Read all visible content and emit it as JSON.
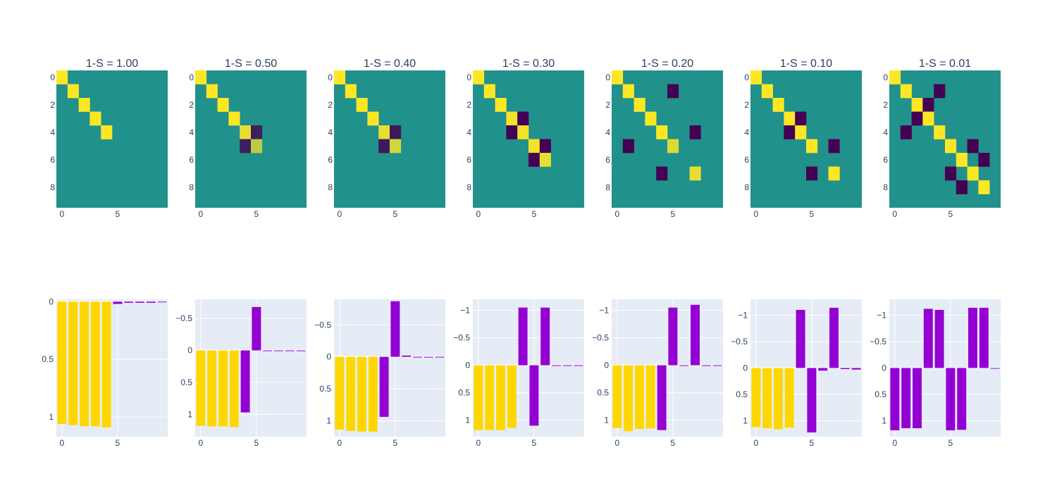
{
  "figure": {
    "colors": {
      "positive_bar": "#FFD700",
      "negative_bar": "#9400D3",
      "plot_bg": "#E5ECF6",
      "heatmap_mid": "#21918c",
      "heatmap_high": "#fde725",
      "heatmap_low": "#440154",
      "grid": "#ffffff",
      "text": "#2a3f5f"
    },
    "colorscale": "viridis"
  },
  "chart_data": [
    {
      "type": "heatmap",
      "title": "1-S = 1.00",
      "x_ticks": [
        "0",
        "5"
      ],
      "y_ticks": [
        "0",
        "2",
        "4",
        "6",
        "8"
      ],
      "cells": [
        [
          0,
          0,
          1
        ],
        [
          1,
          1,
          1
        ],
        [
          2,
          2,
          1
        ],
        [
          3,
          3,
          1
        ],
        [
          4,
          4,
          1
        ]
      ]
    },
    {
      "type": "heatmap",
      "title": "1-S = 0.50",
      "x_ticks": [
        "0",
        "5"
      ],
      "y_ticks": [
        "0",
        "2",
        "4",
        "6",
        "8"
      ],
      "cells": [
        [
          0,
          0,
          1
        ],
        [
          1,
          1,
          1
        ],
        [
          2,
          2,
          1
        ],
        [
          3,
          3,
          1
        ],
        [
          4,
          4,
          0.9
        ],
        [
          4,
          5,
          -0.8
        ],
        [
          5,
          4,
          -0.8
        ],
        [
          5,
          5,
          0.7
        ]
      ]
    },
    {
      "type": "heatmap",
      "title": "1-S = 0.40",
      "x_ticks": [
        "0",
        "5"
      ],
      "y_ticks": [
        "0",
        "2",
        "4",
        "6",
        "8"
      ],
      "cells": [
        [
          0,
          0,
          1
        ],
        [
          1,
          1,
          1
        ],
        [
          2,
          2,
          1
        ],
        [
          3,
          3,
          1
        ],
        [
          4,
          4,
          0.9
        ],
        [
          4,
          5,
          -0.85
        ],
        [
          5,
          4,
          -0.85
        ],
        [
          5,
          5,
          0.8
        ]
      ]
    },
    {
      "type": "heatmap",
      "title": "1-S = 0.30",
      "x_ticks": [
        "0",
        "5"
      ],
      "y_ticks": [
        "0",
        "2",
        "4",
        "6",
        "8"
      ],
      "cells": [
        [
          0,
          0,
          1
        ],
        [
          1,
          1,
          1
        ],
        [
          2,
          2,
          1
        ],
        [
          3,
          3,
          0.95
        ],
        [
          3,
          4,
          -1
        ],
        [
          4,
          3,
          -1
        ],
        [
          4,
          4,
          0.95
        ],
        [
          5,
          5,
          0.95
        ],
        [
          5,
          6,
          -1
        ],
        [
          6,
          5,
          -1
        ],
        [
          6,
          6,
          0.9
        ]
      ]
    },
    {
      "type": "heatmap",
      "title": "1-S = 0.20",
      "x_ticks": [
        "0",
        "5"
      ],
      "y_ticks": [
        "0",
        "2",
        "4",
        "6",
        "8"
      ],
      "cells": [
        [
          0,
          0,
          1
        ],
        [
          1,
          1,
          1
        ],
        [
          1,
          5,
          -1
        ],
        [
          2,
          2,
          1
        ],
        [
          3,
          3,
          1
        ],
        [
          4,
          4,
          1
        ],
        [
          4,
          7,
          -1
        ],
        [
          5,
          1,
          -1
        ],
        [
          5,
          5,
          0.85
        ],
        [
          7,
          4,
          -1
        ],
        [
          7,
          7,
          0.9
        ]
      ]
    },
    {
      "type": "heatmap",
      "title": "1-S = 0.10",
      "x_ticks": [
        "0",
        "5"
      ],
      "y_ticks": [
        "0",
        "2",
        "4",
        "6",
        "8"
      ],
      "cells": [
        [
          0,
          0,
          1
        ],
        [
          1,
          1,
          1
        ],
        [
          2,
          2,
          1
        ],
        [
          3,
          3,
          1
        ],
        [
          3,
          4,
          -1
        ],
        [
          4,
          3,
          -1
        ],
        [
          4,
          4,
          1
        ],
        [
          5,
          5,
          1
        ],
        [
          5,
          7,
          -1
        ],
        [
          7,
          5,
          -1
        ],
        [
          7,
          7,
          1
        ]
      ]
    },
    {
      "type": "heatmap",
      "title": "1-S = 0.01",
      "x_ticks": [
        "0",
        "5"
      ],
      "y_ticks": [
        "0",
        "2",
        "4",
        "6",
        "8"
      ],
      "cells": [
        [
          0,
          0,
          1
        ],
        [
          1,
          1,
          1
        ],
        [
          1,
          4,
          -1
        ],
        [
          2,
          2,
          1
        ],
        [
          2,
          3,
          -1
        ],
        [
          3,
          2,
          -1
        ],
        [
          3,
          3,
          1
        ],
        [
          4,
          1,
          -1
        ],
        [
          4,
          4,
          1
        ],
        [
          5,
          5,
          1
        ],
        [
          5,
          7,
          -1
        ],
        [
          6,
          6,
          1
        ],
        [
          6,
          8,
          -1
        ],
        [
          7,
          5,
          -1
        ],
        [
          7,
          7,
          1
        ],
        [
          8,
          6,
          -1
        ],
        [
          8,
          8,
          1
        ]
      ]
    },
    {
      "type": "bar",
      "x": [
        0,
        1,
        2,
        3,
        4,
        5,
        6,
        7,
        8,
        9
      ],
      "x_ticks": [
        "0",
        "5"
      ],
      "ylim": [
        -0.02,
        1.17
      ],
      "y_reversed": true,
      "y_ticks": [
        0,
        0.5,
        1
      ],
      "y_tick_labels": [
        "0",
        "0.5",
        "1"
      ],
      "values": [
        1.06,
        1.07,
        1.08,
        1.08,
        1.09,
        0.02,
        0.01,
        0.01,
        0.01,
        0.005
      ]
    },
    {
      "type": "bar",
      "x": [
        0,
        1,
        2,
        3,
        4,
        5,
        6,
        7,
        8,
        9
      ],
      "x_ticks": [
        "0",
        "5"
      ],
      "ylim": [
        -0.8,
        1.35
      ],
      "y_reversed": true,
      "y_ticks": [
        -0.5,
        0,
        0.5,
        1
      ],
      "y_tick_labels": [
        "−0.5",
        "0",
        "0.5",
        "1"
      ],
      "values": [
        1.18,
        1.19,
        1.19,
        1.2,
        0.97,
        -0.68,
        0.01,
        0.01,
        0.005,
        0.005
      ]
    },
    {
      "type": "bar",
      "x": [
        0,
        1,
        2,
        3,
        4,
        5,
        6,
        7,
        8,
        9
      ],
      "x_ticks": [
        "0",
        "5"
      ],
      "ylim": [
        -0.9,
        1.25
      ],
      "y_reversed": true,
      "y_ticks": [
        -0.5,
        0,
        0.5,
        1
      ],
      "y_tick_labels": [
        "−0.5",
        "0",
        "0.5",
        "1"
      ],
      "values": [
        1.14,
        1.16,
        1.17,
        1.17,
        0.94,
        -0.87,
        -0.02,
        0.005,
        0.005,
        0.005
      ]
    },
    {
      "type": "bar",
      "x": [
        0,
        1,
        2,
        3,
        4,
        5,
        6,
        7,
        8,
        9
      ],
      "x_ticks": [
        "0",
        "5"
      ],
      "ylim": [
        -1.2,
        1.3
      ],
      "y_reversed": true,
      "y_ticks": [
        -1,
        -0.5,
        0,
        0.5,
        1
      ],
      "y_tick_labels": [
        "−1",
        "−0.5",
        "0",
        "0.5",
        "1"
      ],
      "values": [
        1.18,
        1.18,
        1.18,
        1.14,
        -1.05,
        1.1,
        -1.05,
        0.01,
        0.01,
        0.01
      ]
    },
    {
      "type": "bar",
      "x": [
        0,
        1,
        2,
        3,
        4,
        5,
        6,
        7,
        8,
        9
      ],
      "x_ticks": [
        "0",
        "5"
      ],
      "ylim": [
        -1.2,
        1.3
      ],
      "y_reversed": true,
      "y_ticks": [
        -1,
        -0.5,
        0,
        0.5,
        1
      ],
      "y_tick_labels": [
        "−1",
        "−0.5",
        "0",
        "0.5",
        "1"
      ],
      "values": [
        1.14,
        1.2,
        1.16,
        1.15,
        1.18,
        -1.05,
        0.01,
        -1.1,
        0.005,
        0.005
      ]
    },
    {
      "type": "bar",
      "x": [
        0,
        1,
        2,
        3,
        4,
        5,
        6,
        7,
        8,
        9
      ],
      "x_ticks": [
        "0",
        "5"
      ],
      "ylim": [
        -1.3,
        1.3
      ],
      "y_reversed": true,
      "y_ticks": [
        -1,
        -0.5,
        0,
        0.5,
        1
      ],
      "y_tick_labels": [
        "−1",
        "−0.5",
        "0",
        "0.5",
        "1"
      ],
      "values": [
        1.12,
        1.14,
        1.16,
        1.13,
        -1.1,
        1.22,
        0.05,
        -1.14,
        0.02,
        0.03
      ]
    },
    {
      "type": "bar",
      "x": [
        0,
        1,
        2,
        3,
        4,
        5,
        6,
        7,
        8,
        9
      ],
      "x_ticks": [
        "0",
        "5"
      ],
      "ylim": [
        -1.3,
        1.3
      ],
      "y_reversed": true,
      "y_ticks": [
        -1,
        -0.5,
        0,
        0.5,
        1
      ],
      "y_tick_labels": [
        "−1",
        "−0.5",
        "0",
        "0.5",
        "1"
      ],
      "values": [
        1.18,
        1.14,
        1.14,
        -1.12,
        -1.1,
        1.18,
        1.17,
        -1.14,
        -1.14,
        0.01
      ]
    }
  ]
}
